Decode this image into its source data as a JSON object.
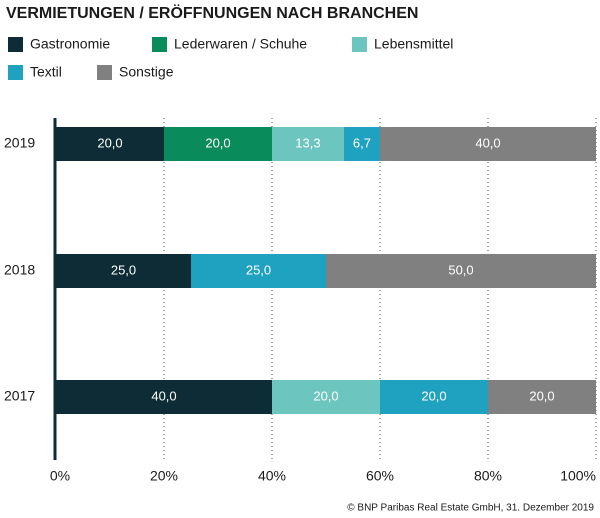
{
  "chart_data": {
    "type": "stacked-bar-horizontal",
    "title": "VERMIETUNGEN / ERÖFFNUNGEN NACH BRANCHEN",
    "categories": [
      "2019",
      "2018",
      "2017"
    ],
    "series": [
      {
        "name": "Gastronomie",
        "color": "#0d2c35",
        "values": [
          20,
          25,
          40
        ],
        "value_labels": [
          "20,0",
          "25,0",
          "40,0"
        ]
      },
      {
        "name": "Lederwaren / Schuhe",
        "color": "#0a8b5c",
        "values": [
          20,
          null,
          null
        ],
        "value_labels": [
          "20,0",
          null,
          null
        ]
      },
      {
        "name": "Lebensmittel",
        "color": "#6cc5bf",
        "values": [
          13.3,
          null,
          20
        ],
        "value_labels": [
          "13,3",
          null,
          "20,0"
        ]
      },
      {
        "name": "Textil",
        "color": "#1fa2bf",
        "values": [
          6.7,
          25,
          20
        ],
        "value_labels": [
          "6,7",
          "25,0",
          "20,0"
        ]
      },
      {
        "name": "Sonstige",
        "color": "#808080",
        "values": [
          40,
          50,
          20
        ],
        "value_labels": [
          "40,0",
          "50,0",
          "20,0"
        ]
      }
    ],
    "xlim": [
      0,
      100
    ],
    "xticks": [
      {
        "value": 0,
        "label": "0%"
      },
      {
        "value": 20,
        "label": "20%"
      },
      {
        "value": 40,
        "label": "40%"
      },
      {
        "value": 60,
        "label": "60%"
      },
      {
        "value": 80,
        "label": "80%"
      },
      {
        "value": 100,
        "label": "100%"
      }
    ],
    "grid": true,
    "source": "© BNP Paribas Real Estate GmbH, 31. Dezember 2019"
  }
}
